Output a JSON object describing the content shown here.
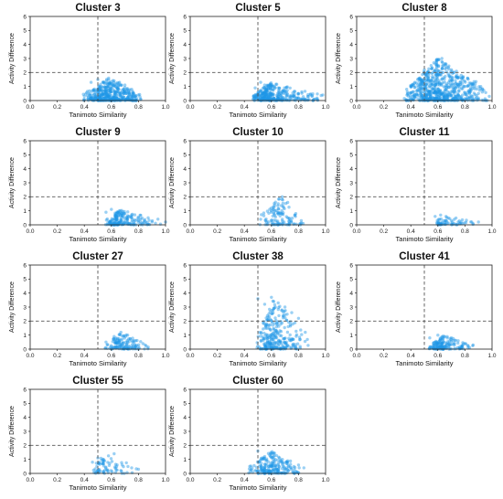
{
  "figure": {
    "xlabel": "Tanimoto Similarity",
    "ylabel": "Activity Difference",
    "xticks": [
      "0.0",
      "0.2",
      "0.4",
      "0.6",
      "0.8",
      "1.0"
    ],
    "yticks": [
      "0",
      "1",
      "2",
      "3",
      "4",
      "5",
      "6"
    ],
    "point_color": "#1e96e6",
    "threshold_line_color": "#555555"
  },
  "chart_data": [
    {
      "type": "scatter",
      "title": "Cluster 3",
      "xlabel": "Tanimoto Similarity",
      "ylabel": "Activity Difference",
      "xlim": [
        0,
        1
      ],
      "ylim": [
        0,
        6
      ],
      "thresholds": {
        "x": 0.5,
        "y": 2
      },
      "grid": false,
      "x_range": [
        0.38,
        0.83
      ],
      "y_max": 1.6,
      "x_center": 0.58,
      "point_count": 420,
      "points": [
        [
          0.4,
          0.3
        ],
        [
          0.45,
          1.3
        ],
        [
          0.5,
          1.5
        ],
        [
          0.55,
          1.2
        ],
        [
          0.58,
          1.6
        ],
        [
          0.62,
          1.4
        ],
        [
          0.66,
          1.3
        ],
        [
          0.7,
          1.1
        ],
        [
          0.75,
          0.8
        ],
        [
          0.8,
          0.4
        ]
      ]
    },
    {
      "type": "scatter",
      "title": "Cluster 5",
      "xlabel": "Tanimoto Similarity",
      "ylabel": "Activity Difference",
      "xlim": [
        0,
        1
      ],
      "ylim": [
        0,
        6
      ],
      "thresholds": {
        "x": 0.5,
        "y": 2
      },
      "grid": false,
      "x_range": [
        0.45,
        1.0
      ],
      "y_max": 1.3,
      "x_center": 0.6,
      "point_count": 330,
      "points": [
        [
          0.48,
          0.9
        ],
        [
          0.52,
          1.3
        ],
        [
          0.55,
          1.1
        ],
        [
          0.6,
          1.0
        ],
        [
          0.65,
          0.9
        ],
        [
          0.7,
          0.7
        ],
        [
          0.8,
          0.5
        ],
        [
          0.9,
          0.3
        ],
        [
          0.98,
          0.4
        ]
      ]
    },
    {
      "type": "scatter",
      "title": "Cluster 8",
      "xlabel": "Tanimoto Similarity",
      "ylabel": "Activity Difference",
      "xlim": [
        0,
        1
      ],
      "ylim": [
        0,
        6
      ],
      "thresholds": {
        "x": 0.5,
        "y": 2
      },
      "grid": false,
      "x_range": [
        0.35,
        1.0
      ],
      "y_max": 3.0,
      "x_center": 0.6,
      "point_count": 650,
      "points": [
        [
          0.38,
          0.5
        ],
        [
          0.45,
          1.5
        ],
        [
          0.5,
          2.2
        ],
        [
          0.55,
          2.5
        ],
        [
          0.6,
          2.9
        ],
        [
          0.63,
          3.0
        ],
        [
          0.66,
          2.6
        ],
        [
          0.7,
          2.2
        ],
        [
          0.75,
          1.6
        ],
        [
          0.8,
          1.0
        ],
        [
          0.9,
          0.5
        ],
        [
          0.98,
          0.3
        ]
      ]
    },
    {
      "type": "scatter",
      "title": "Cluster 9",
      "xlabel": "Tanimoto Similarity",
      "ylabel": "Activity Difference",
      "xlim": [
        0,
        1
      ],
      "ylim": [
        0,
        6
      ],
      "thresholds": {
        "x": 0.5,
        "y": 2
      },
      "grid": false,
      "x_range": [
        0.55,
        1.0
      ],
      "y_max": 1.1,
      "x_center": 0.66,
      "point_count": 180,
      "points": [
        [
          0.56,
          0.9
        ],
        [
          0.6,
          1.1
        ],
        [
          0.65,
          0.9
        ],
        [
          0.7,
          0.8
        ],
        [
          0.75,
          0.5
        ],
        [
          0.8,
          0.3
        ],
        [
          0.9,
          0.2
        ],
        [
          1.0,
          0.2
        ]
      ]
    },
    {
      "type": "scatter",
      "title": "Cluster 10",
      "xlabel": "Tanimoto Similarity",
      "ylabel": "Activity Difference",
      "xlim": [
        0,
        1
      ],
      "ylim": [
        0,
        6
      ],
      "thresholds": {
        "x": 0.5,
        "y": 2
      },
      "grid": false,
      "x_range": [
        0.5,
        0.85
      ],
      "y_max": 2.0,
      "x_center": 0.67,
      "point_count": 110,
      "points": [
        [
          0.52,
          0.4
        ],
        [
          0.6,
          1.0
        ],
        [
          0.65,
          1.5
        ],
        [
          0.68,
          2.0
        ],
        [
          0.72,
          1.6
        ],
        [
          0.78,
          0.8
        ],
        [
          0.82,
          0.3
        ]
      ]
    },
    {
      "type": "scatter",
      "title": "Cluster 11",
      "xlabel": "Tanimoto Similarity",
      "ylabel": "Activity Difference",
      "xlim": [
        0,
        1
      ],
      "ylim": [
        0,
        6
      ],
      "thresholds": {
        "x": 0.5,
        "y": 2
      },
      "grid": false,
      "x_range": [
        0.57,
        0.92
      ],
      "y_max": 0.7,
      "x_center": 0.64,
      "point_count": 60,
      "points": [
        [
          0.58,
          0.6
        ],
        [
          0.62,
          0.7
        ],
        [
          0.66,
          0.6
        ],
        [
          0.7,
          0.3
        ],
        [
          0.75,
          0.2
        ],
        [
          0.85,
          0.2
        ],
        [
          0.9,
          0.2
        ]
      ]
    },
    {
      "type": "scatter",
      "title": "Cluster 27",
      "xlabel": "Tanimoto Similarity",
      "ylabel": "Activity Difference",
      "xlim": [
        0,
        1
      ],
      "ylim": [
        0,
        6
      ],
      "thresholds": {
        "x": 0.5,
        "y": 2
      },
      "grid": false,
      "x_range": [
        0.55,
        0.88
      ],
      "y_max": 1.2,
      "x_center": 0.68,
      "point_count": 130,
      "points": [
        [
          0.56,
          0.5
        ],
        [
          0.62,
          0.9
        ],
        [
          0.67,
          1.2
        ],
        [
          0.72,
          1.0
        ],
        [
          0.78,
          0.6
        ],
        [
          0.85,
          0.3
        ]
      ]
    },
    {
      "type": "scatter",
      "title": "Cluster 38",
      "xlabel": "Tanimoto Similarity",
      "ylabel": "Activity Difference",
      "xlim": [
        0,
        1
      ],
      "ylim": [
        0,
        6
      ],
      "thresholds": {
        "x": 0.5,
        "y": 2
      },
      "grid": false,
      "x_range": [
        0.49,
        0.88
      ],
      "y_max": 3.7,
      "x_center": 0.62,
      "point_count": 280,
      "points": [
        [
          0.5,
          3.6
        ],
        [
          0.55,
          3.2
        ],
        [
          0.6,
          3.7
        ],
        [
          0.65,
          3.3
        ],
        [
          0.7,
          3.0
        ],
        [
          0.75,
          2.6
        ],
        [
          0.8,
          2.2
        ],
        [
          0.85,
          1.2
        ]
      ]
    },
    {
      "type": "scatter",
      "title": "Cluster 41",
      "xlabel": "Tanimoto Similarity",
      "ylabel": "Activity Difference",
      "xlim": [
        0,
        1
      ],
      "ylim": [
        0,
        6
      ],
      "thresholds": {
        "x": 0.5,
        "y": 2
      },
      "grid": false,
      "x_range": [
        0.53,
        0.87
      ],
      "y_max": 1.0,
      "x_center": 0.64,
      "point_count": 160,
      "points": [
        [
          0.54,
          0.8
        ],
        [
          0.6,
          1.0
        ],
        [
          0.65,
          0.9
        ],
        [
          0.7,
          0.8
        ],
        [
          0.75,
          0.6
        ],
        [
          0.8,
          0.4
        ],
        [
          0.86,
          0.3
        ]
      ]
    },
    {
      "type": "scatter",
      "title": "Cluster 55",
      "xlabel": "Tanimoto Similarity",
      "ylabel": "Activity Difference",
      "xlim": [
        0,
        1
      ],
      "ylim": [
        0,
        6
      ],
      "thresholds": {
        "x": 0.5,
        "y": 2
      },
      "grid": false,
      "x_range": [
        0.45,
        0.82
      ],
      "y_max": 1.4,
      "x_center": 0.55,
      "point_count": 70,
      "points": [
        [
          0.46,
          0.8
        ],
        [
          0.5,
          1.1
        ],
        [
          0.55,
          0.9
        ],
        [
          0.62,
          1.4
        ],
        [
          0.68,
          0.6
        ],
        [
          0.75,
          0.4
        ],
        [
          0.8,
          0.3
        ]
      ]
    },
    {
      "type": "scatter",
      "title": "Cluster 60",
      "xlabel": "Tanimoto Similarity",
      "ylabel": "Activity Difference",
      "xlim": [
        0,
        1
      ],
      "ylim": [
        0,
        6
      ],
      "thresholds": {
        "x": 0.5,
        "y": 2
      },
      "grid": false,
      "x_range": [
        0.42,
        0.85
      ],
      "y_max": 1.6,
      "x_center": 0.6,
      "point_count": 210,
      "points": [
        [
          0.44,
          0.5
        ],
        [
          0.5,
          1.6
        ],
        [
          0.55,
          1.2
        ],
        [
          0.6,
          1.4
        ],
        [
          0.66,
          1.1
        ],
        [
          0.72,
          0.9
        ],
        [
          0.8,
          0.6
        ],
        [
          0.84,
          0.4
        ]
      ]
    }
  ]
}
